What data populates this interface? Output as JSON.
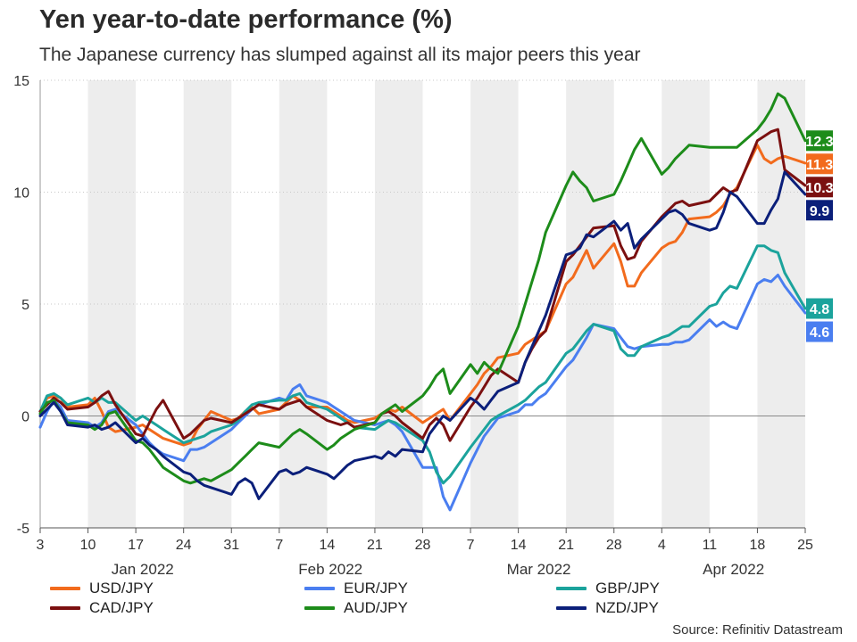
{
  "title": "Yen year-to-date performance (%)",
  "subtitle": "The Japanese currency has slumped against all its major peers this year",
  "source": "Source: Refinitiv Datastream",
  "chart_data": {
    "type": "line",
    "ylim": [
      -5,
      15
    ],
    "yticks": [
      "15",
      "10",
      "5",
      "0",
      "-5"
    ],
    "ytick_values": [
      15,
      10,
      5,
      0,
      -5
    ],
    "x_day_range": [
      0,
      112
    ],
    "xticks": [
      {
        "label": "3",
        "day": 0
      },
      {
        "label": "10",
        "day": 7
      },
      {
        "label": "17",
        "day": 14
      },
      {
        "label": "24",
        "day": 21
      },
      {
        "label": "31",
        "day": 28
      },
      {
        "label": "7",
        "day": 35
      },
      {
        "label": "14",
        "day": 42
      },
      {
        "label": "21",
        "day": 49
      },
      {
        "label": "28",
        "day": 56
      },
      {
        "label": "7",
        "day": 63
      },
      {
        "label": "14",
        "day": 70
      },
      {
        "label": "21",
        "day": 77
      },
      {
        "label": "28",
        "day": 84
      },
      {
        "label": "4",
        "day": 91
      },
      {
        "label": "11",
        "day": 98
      },
      {
        "label": "18",
        "day": 105
      },
      {
        "label": "25",
        "day": 112
      }
    ],
    "months": [
      {
        "label": "Jan 2022",
        "day": 15
      },
      {
        "label": "Feb 2022",
        "day": 42.5
      },
      {
        "label": "Mar 2022",
        "day": 73
      },
      {
        "label": "Apr 2022",
        "day": 101.5
      }
    ],
    "shaded_weeks": [
      [
        7,
        14
      ],
      [
        21,
        28
      ],
      [
        35,
        42
      ],
      [
        49,
        56
      ],
      [
        63,
        70
      ],
      [
        77,
        84
      ],
      [
        91,
        98
      ],
      [
        105,
        112
      ]
    ],
    "x_days": [
      0,
      1,
      2,
      3,
      4,
      7,
      8,
      9,
      10,
      11,
      14,
      15,
      16,
      17,
      18,
      21,
      22,
      23,
      24,
      25,
      28,
      29,
      30,
      31,
      32,
      35,
      36,
      37,
      38,
      39,
      42,
      43,
      44,
      45,
      46,
      49,
      50,
      51,
      52,
      53,
      56,
      57,
      58,
      59,
      60,
      63,
      64,
      65,
      66,
      67,
      70,
      71,
      72,
      73,
      74,
      77,
      78,
      79,
      80,
      81,
      84,
      85,
      86,
      87,
      88,
      91,
      92,
      93,
      94,
      95,
      98,
      99,
      100,
      101,
      102,
      105,
      106,
      107,
      108,
      109,
      112
    ],
    "series": [
      {
        "name": "USD/JPY",
        "color": "#f26b1d",
        "final_label": "11.3",
        "values": [
          0.2,
          0.8,
          0.9,
          0.8,
          0.4,
          0.5,
          0.8,
          0.2,
          -0.5,
          -0.7,
          -0.5,
          -0.4,
          -0.6,
          -0.8,
          -1.0,
          -1.3,
          -1.2,
          -0.6,
          -0.2,
          0.2,
          -0.2,
          -0.1,
          0.2,
          0.4,
          0.1,
          0.3,
          0.6,
          0.9,
          0.7,
          0.4,
          0.4,
          0.2,
          0.0,
          -0.2,
          -0.3,
          -0.1,
          0.1,
          0.3,
          0.2,
          0.4,
          -0.3,
          -0.1,
          0.1,
          0.3,
          -0.2,
          1.0,
          1.4,
          1.9,
          2.2,
          2.6,
          2.8,
          3.2,
          3.4,
          3.6,
          3.8,
          5.9,
          6.2,
          6.8,
          7.4,
          6.6,
          7.7,
          6.9,
          5.8,
          5.8,
          6.4,
          7.5,
          7.7,
          7.8,
          8.2,
          8.8,
          8.9,
          9.1,
          9.4,
          9.9,
          10.2,
          12.1,
          11.5,
          11.3,
          11.5,
          11.6,
          11.3
        ]
      },
      {
        "name": "EUR/JPY",
        "color": "#4a7ef0",
        "final_label": "4.6",
        "values": [
          -0.5,
          0.2,
          0.7,
          0.4,
          -0.2,
          -0.3,
          -0.5,
          -0.3,
          0.2,
          0.3,
          -0.4,
          -0.8,
          -1.2,
          -1.5,
          -1.7,
          -2.0,
          -1.5,
          -1.5,
          -1.4,
          -1.2,
          -0.6,
          -0.3,
          0.0,
          0.3,
          0.5,
          0.8,
          0.7,
          1.2,
          1.4,
          0.9,
          0.6,
          0.4,
          0.2,
          0.0,
          -0.2,
          -0.4,
          -0.3,
          -0.2,
          -0.4,
          -0.7,
          -2.3,
          -2.3,
          -2.3,
          -3.6,
          -4.2,
          -2.1,
          -1.5,
          -0.9,
          -0.5,
          -0.1,
          0.2,
          0.5,
          0.5,
          0.8,
          1.0,
          2.2,
          2.5,
          3.0,
          3.5,
          4.1,
          3.9,
          3.5,
          3.1,
          3.0,
          3.1,
          3.2,
          3.2,
          3.3,
          3.3,
          3.4,
          4.3,
          4.0,
          4.2,
          4.0,
          3.9,
          5.9,
          6.1,
          6.0,
          6.3,
          5.8,
          4.6
        ]
      },
      {
        "name": "GBP/JPY",
        "color": "#1ba39c",
        "final_label": "4.8",
        "values": [
          0.2,
          0.9,
          1.0,
          0.8,
          0.5,
          0.8,
          0.6,
          0.8,
          0.6,
          0.6,
          -0.2,
          0.0,
          -0.2,
          -0.4,
          -0.6,
          -1.2,
          -1.1,
          -1.0,
          -0.9,
          -0.7,
          -0.4,
          -0.2,
          0.2,
          0.5,
          0.6,
          0.7,
          0.7,
          0.9,
          1.0,
          0.6,
          0.3,
          0.1,
          -0.1,
          -0.3,
          -0.5,
          -0.6,
          -0.4,
          -0.2,
          -0.3,
          -0.5,
          -1.1,
          -1.6,
          -2.5,
          -3.0,
          -2.7,
          -1.4,
          -1.0,
          -0.6,
          -0.2,
          0.0,
          0.5,
          0.7,
          1.0,
          1.3,
          1.5,
          2.8,
          3.0,
          3.4,
          3.8,
          4.1,
          3.8,
          3.0,
          2.7,
          2.7,
          3.1,
          3.5,
          3.6,
          3.8,
          4.0,
          4.0,
          4.9,
          5.0,
          5.5,
          5.8,
          5.7,
          7.6,
          7.6,
          7.4,
          7.3,
          6.4,
          4.8
        ]
      },
      {
        "name": "CAD/JPY",
        "color": "#7b1010",
        "final_label": "10.3",
        "values": [
          0.2,
          0.5,
          0.8,
          0.6,
          0.3,
          0.4,
          0.6,
          0.9,
          1.1,
          0.5,
          -0.8,
          -0.9,
          -0.3,
          0.3,
          0.7,
          -1.0,
          -0.8,
          -0.5,
          -0.2,
          -0.1,
          -0.3,
          -0.1,
          0.1,
          0.3,
          0.5,
          0.3,
          0.5,
          0.6,
          0.7,
          0.4,
          -0.2,
          -0.3,
          -0.4,
          -0.3,
          -0.5,
          -0.3,
          0.1,
          0.2,
          0.0,
          -0.3,
          -1.0,
          -0.4,
          -0.1,
          -0.4,
          -1.1,
          0.4,
          0.8,
          1.3,
          1.8,
          2.1,
          1.5,
          2.4,
          3.0,
          3.5,
          3.8,
          6.9,
          7.2,
          7.6,
          8.0,
          8.4,
          8.5,
          7.6,
          7.0,
          7.1,
          7.8,
          8.9,
          9.2,
          9.5,
          9.6,
          9.4,
          9.6,
          9.9,
          10.2,
          10.0,
          10.1,
          12.3,
          12.5,
          12.7,
          12.8,
          11.0,
          10.3
        ]
      },
      {
        "name": "AUD/JPY",
        "color": "#1d8c1a",
        "final_label": "12.3",
        "values": [
          0.1,
          0.6,
          0.7,
          0.2,
          -0.3,
          -0.4,
          -0.6,
          -0.4,
          0.1,
          0.2,
          -1.1,
          -1.2,
          -1.5,
          -1.9,
          -2.3,
          -2.9,
          -3.0,
          -2.9,
          -2.8,
          -2.9,
          -2.4,
          -2.1,
          -1.8,
          -1.5,
          -1.2,
          -1.4,
          -1.1,
          -0.8,
          -0.6,
          -0.8,
          -1.5,
          -1.3,
          -1.0,
          -0.8,
          -0.6,
          -0.3,
          0.1,
          0.3,
          0.5,
          0.2,
          0.9,
          1.3,
          1.8,
          2.1,
          1.0,
          2.3,
          1.9,
          2.4,
          2.1,
          1.9,
          4.0,
          5.0,
          6.0,
          7.0,
          8.2,
          10.3,
          10.9,
          10.5,
          10.2,
          9.6,
          9.9,
          10.5,
          11.2,
          11.9,
          12.4,
          10.8,
          11.1,
          11.5,
          11.8,
          12.1,
          12.0,
          12.0,
          12.0,
          12.0,
          12.0,
          12.8,
          13.2,
          13.7,
          14.4,
          14.2,
          12.3
        ]
      },
      {
        "name": "NZD/JPY",
        "color": "#0b1f7a",
        "final_label": "9.9",
        "values": [
          0.0,
          0.3,
          0.6,
          0.2,
          -0.4,
          -0.5,
          -0.4,
          -0.6,
          -0.5,
          -0.3,
          -1.2,
          -1.0,
          -1.3,
          -1.5,
          -1.8,
          -2.5,
          -2.6,
          -2.9,
          -3.1,
          -3.2,
          -3.5,
          -3.0,
          -2.8,
          -3.0,
          -3.7,
          -2.5,
          -2.4,
          -2.6,
          -2.5,
          -2.3,
          -2.6,
          -2.8,
          -2.5,
          -2.2,
          -2.0,
          -1.8,
          -1.9,
          -1.6,
          -1.8,
          -1.5,
          -1.6,
          -0.8,
          -0.4,
          0.0,
          -0.2,
          0.8,
          0.6,
          0.3,
          0.7,
          1.1,
          1.5,
          2.4,
          3.1,
          3.8,
          4.5,
          7.2,
          7.3,
          7.5,
          8.1,
          8.0,
          8.7,
          8.3,
          8.6,
          7.5,
          7.9,
          8.8,
          9.1,
          9.2,
          9.0,
          8.6,
          8.3,
          8.4,
          9.1,
          10.0,
          9.8,
          8.6,
          8.6,
          9.2,
          9.7,
          10.9,
          9.9
        ]
      }
    ]
  }
}
